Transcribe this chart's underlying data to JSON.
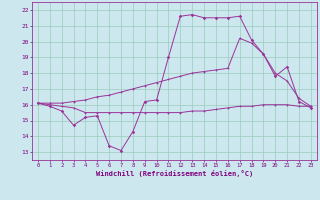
{
  "xlabel": "Windchill (Refroidissement éolien,°C)",
  "bg_color": "#cce8ee",
  "line_color": "#993399",
  "grid_color": "#99ccbb",
  "ylim": [
    12.5,
    22.5
  ],
  "yticks": [
    13,
    14,
    15,
    16,
    17,
    18,
    19,
    20,
    21,
    22
  ],
  "xlim": [
    -0.5,
    23.5
  ],
  "xtick_labels": [
    "0",
    "1",
    "2",
    "3",
    "4",
    "5",
    "6",
    "7",
    "8",
    "9",
    "10",
    "11",
    "12",
    "13",
    "14",
    "15",
    "16",
    "17",
    "18",
    "19",
    "20",
    "21",
    "22",
    "23"
  ],
  "line1_y": [
    16.1,
    16.0,
    15.9,
    15.8,
    15.5,
    15.5,
    15.5,
    15.5,
    15.5,
    15.5,
    15.5,
    15.5,
    15.5,
    15.6,
    15.6,
    15.7,
    15.8,
    15.9,
    15.9,
    16.0,
    16.0,
    16.0,
    15.9,
    15.9
  ],
  "line2_y": [
    16.1,
    15.9,
    15.6,
    14.7,
    15.2,
    15.3,
    13.4,
    13.1,
    14.3,
    16.2,
    16.3,
    19.0,
    21.6,
    21.7,
    21.5,
    21.5,
    21.5,
    21.6,
    20.1,
    19.2,
    17.8,
    18.4,
    16.2,
    15.8
  ],
  "line3_y": [
    16.1,
    16.1,
    16.1,
    16.2,
    16.3,
    16.5,
    16.6,
    16.8,
    17.0,
    17.2,
    17.4,
    17.6,
    17.8,
    18.0,
    18.1,
    18.2,
    18.3,
    20.2,
    19.9,
    19.2,
    18.0,
    17.5,
    16.4,
    15.9
  ]
}
